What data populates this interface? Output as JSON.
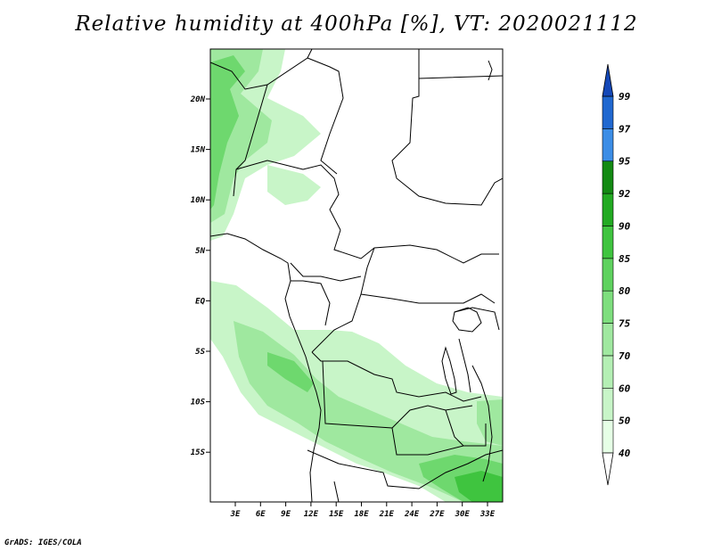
{
  "title": "Relative humidity at 400hPa [%], VT: 2020021112",
  "credit": "GrADS: IGES/COLA",
  "map": {
    "lat_labels": [
      "20N",
      "15N",
      "10N",
      "5N",
      "EQ",
      "5S",
      "10S",
      "15S"
    ],
    "lon_labels": [
      "3E",
      "6E",
      "9E",
      "12E",
      "15E",
      "18E",
      "21E",
      "24E",
      "27E",
      "30E",
      "33E"
    ]
  },
  "colorbar": {
    "levels": [
      "40",
      "50",
      "60",
      "70",
      "75",
      "80",
      "85",
      "90",
      "92",
      "95",
      "97",
      "99"
    ],
    "colors": [
      "#ffffff",
      "#e6ffe6",
      "#c8f5c8",
      "#b4efb4",
      "#a0e8a0",
      "#7ede7e",
      "#5fd25f",
      "#3fc43f",
      "#22aa22",
      "#138a13",
      "#3c8de6",
      "#2068d0",
      "#1448b8"
    ]
  }
}
